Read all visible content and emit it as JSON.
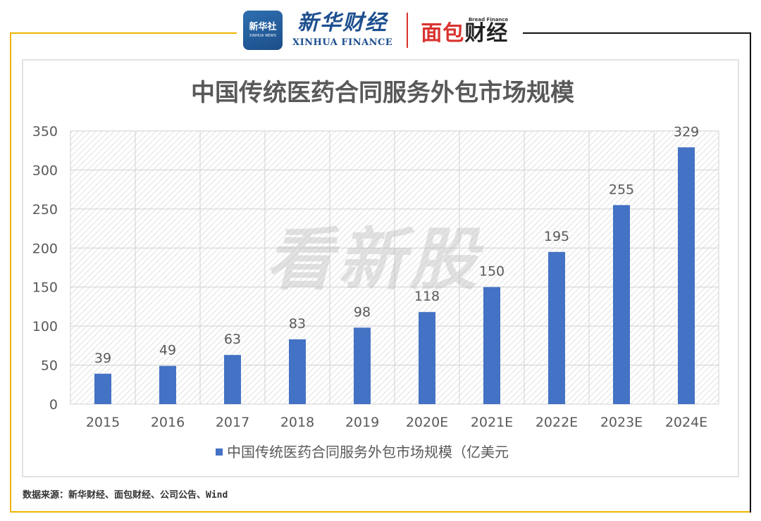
{
  "header": {
    "xinhua_badge": "新华社",
    "xinhua_badge_en": "XINHUA NEWS",
    "xinhua_cn": "新华财经",
    "xinhua_en": "XINHUA FINANCE",
    "bread_en": "Bread Finance",
    "bread_cn_a": "面包",
    "bread_cn_b": "财经"
  },
  "watermark": "看新股",
  "source": "数据来源：新华财经、面包财经、公司公告、Wind",
  "colors": {
    "bar": "#4472c4",
    "frame": "#f0b400",
    "title": "#595959"
  },
  "chart_data": {
    "type": "bar",
    "title": "中国传统医药合同服务外包市场规模",
    "categories": [
      "2015",
      "2016",
      "2017",
      "2018",
      "2019",
      "2020E",
      "2021E",
      "2022E",
      "2023E",
      "2024E"
    ],
    "series": [
      {
        "name": "中国传统医药合同服务外包市场规模（亿美元",
        "values": [
          39,
          49,
          63,
          83,
          98,
          118,
          150,
          195,
          255,
          329
        ]
      }
    ],
    "ylim": [
      0,
      350
    ],
    "yticks": [
      0,
      50,
      100,
      150,
      200,
      250,
      300,
      350
    ],
    "grid": true,
    "legend": "bottom"
  }
}
